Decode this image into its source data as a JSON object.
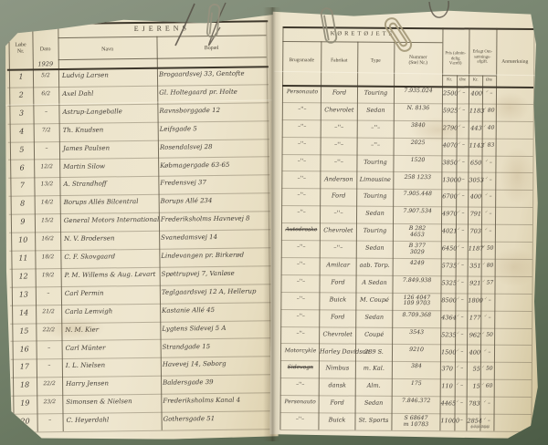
{
  "colors": {
    "background_felt": "#6e7c65",
    "paper": "#ece4cb",
    "ink": "#413c36",
    "printed": "#4d4639",
    "pencil": "#8e8674",
    "grid_line": "#4d4534"
  },
  "decorations": {
    "icons": [
      "paperclip-icon",
      "paperclip-icon",
      "paperclip-icon",
      "ink-flourish",
      "ink-flourish",
      "ink-flourish"
    ]
  },
  "left_page": {
    "title": "EJERENS",
    "columns": {
      "no": "Løbe\nNr.",
      "date": "Dato",
      "name": "Navn",
      "residence": "Bopæl"
    },
    "year": "1929",
    "rows": [
      {
        "no": "1",
        "date": "5/2",
        "name": "Ludvig Larsen",
        "residence": "Brogaardsvej 33, Gentofte"
      },
      {
        "no": "2",
        "date": "6/2",
        "name": "Axel Dahl",
        "residence": "Gl. Holtegaard pr. Holte"
      },
      {
        "no": "3",
        "date": "–",
        "name": "Astrup-Langeballe",
        "residence": "Ravnsborggade 12"
      },
      {
        "no": "4",
        "date": "7/2",
        "name": "Th. Knudsen",
        "residence": "Leifsgade 5"
      },
      {
        "no": "5",
        "date": "–",
        "name": "James Paulsen",
        "residence": "Rosendalsvej 28"
      },
      {
        "no": "6",
        "date": "12/2",
        "name": "Martin Silow",
        "residence": "Købmagergade 63-65"
      },
      {
        "no": "7",
        "date": "13/2",
        "name": "A. Strandhoff",
        "residence": "Fredensvej 37"
      },
      {
        "no": "8",
        "date": "14/2",
        "name": "Borups Allés Bilcentral",
        "residence": "Borups Allé 234"
      },
      {
        "no": "9",
        "date": "15/2",
        "name": "General Motors International",
        "residence": "Frederiksholms Havnevej 8"
      },
      {
        "no": "10",
        "date": "16/2",
        "name": "N. V. Brodersen",
        "residence": "Svanedamsvej 14"
      },
      {
        "no": "11",
        "date": "18/2",
        "name": "C. F. Skovgaard",
        "residence": "Lindevangen pr. Birkerød"
      },
      {
        "no": "12",
        "date": "19/2",
        "name": "P. M. Willems & Aug. Levart",
        "residence": "Spøttrupvej 7, Vanløse"
      },
      {
        "no": "13",
        "date": "–",
        "name": "Carl Permin",
        "residence": "Teglgaardsvej 12 A, Hellerup"
      },
      {
        "no": "14",
        "date": "21/2",
        "name": "Carla Lemvigh",
        "residence": "Kastanie Allé 45"
      },
      {
        "no": "15",
        "date": "22/2",
        "name": "N. M. Kier",
        "residence": "Lygtens Sidevej 5 A"
      },
      {
        "no": "16",
        "date": "–",
        "name": "Carl Münter",
        "residence": "Strandgade 15"
      },
      {
        "no": "17",
        "date": "–",
        "name": "I. L. Nielsen",
        "residence": "Havevej 14, Søborg"
      },
      {
        "no": "18",
        "date": "22/2",
        "name": "Harry Jensen",
        "residence": "Baldersgade 39"
      },
      {
        "no": "19",
        "date": "23/2",
        "name": "Simonsen & Nielsen",
        "residence": "Frederiksholms Kanal 4"
      },
      {
        "no": "20",
        "date": "–",
        "name": "C. Heyerdahl",
        "residence": "Gothersgade 51"
      }
    ]
  },
  "right_page": {
    "title": "KØRETØJETS",
    "columns": {
      "use": "Brugsmaade",
      "make": "Fabrikat",
      "type": "Type",
      "number": "Nummer\n(Stel Nr.)",
      "price": "Pris (almin-\ndelig\nVærdi)",
      "tax": "Erlagt Om-\nsætnings-\nafgift.",
      "remark": "Anmærkning",
      "kr": "Kr.",
      "ore": "Øre"
    },
    "tick": "✓",
    "rows": [
      {
        "use": "Personauto",
        "make": "Ford",
        "type": "Touring",
        "number": "7.935.024",
        "price_kr": "2500",
        "price_ore": "–",
        "tax_kr": "400",
        "tax_ore": "–",
        "remark": ""
      },
      {
        "use": "–''–",
        "make": "Chevrolet",
        "type": "Sedan",
        "number": "N. 8136",
        "price_kr": "5925",
        "price_ore": "–",
        "tax_kr": "1183",
        "tax_ore": "80",
        "remark": ""
      },
      {
        "use": "–''–",
        "make": "–''–",
        "type": "–''–",
        "number": "3840",
        "price_kr": "2790",
        "price_ore": "–",
        "tax_kr": "443",
        "tax_ore": "40",
        "remark": ""
      },
      {
        "use": "–''–",
        "make": "–''–",
        "type": "–''–",
        "number": "2025",
        "price_kr": "4070",
        "price_ore": "–",
        "tax_kr": "1143",
        "tax_ore": "83",
        "remark": ""
      },
      {
        "use": "–''–",
        "make": "–''–",
        "type": "Touring",
        "number": "1520",
        "price_kr": "3850",
        "price_ore": "–",
        "tax_kr": "650",
        "tax_ore": "–",
        "remark": ""
      },
      {
        "use": "–''–",
        "make": "Anderson",
        "type": "Limousine",
        "number": "258 1233",
        "price_kr": "13000",
        "price_ore": "–",
        "tax_kr": "3053",
        "tax_ore": "–",
        "remark": ""
      },
      {
        "use": "–''–",
        "make": "Ford",
        "type": "Touring",
        "number": "7.905.448",
        "price_kr": "6700",
        "price_ore": "–",
        "tax_kr": "400",
        "tax_ore": "–",
        "remark": ""
      },
      {
        "use": "–''–",
        "make": "–''–",
        "type": "Sedan",
        "number": "7.907.534",
        "price_kr": "4970",
        "price_ore": "–",
        "tax_kr": "791",
        "tax_ore": "–",
        "remark": ""
      },
      {
        "use": "Autodroske",
        "use_struck": true,
        "make": "Chevrolet",
        "type": "Touring",
        "number": "B 282\n4653",
        "price_kr": "4021",
        "price_ore": "–",
        "tax_kr": "703",
        "tax_ore": "–",
        "remark": ""
      },
      {
        "use": "–''–",
        "make": "–''–",
        "type": "Sedan",
        "number": "B 377\n3029",
        "price_kr": "6450",
        "price_ore": "–",
        "tax_kr": "1187",
        "tax_ore": "50",
        "remark": ""
      },
      {
        "use": "–''–",
        "make": "Amilcar",
        "type": "aab. Torp.",
        "number": "4249",
        "price_kr": "5735",
        "price_ore": "–",
        "tax_kr": "351",
        "tax_ore": "80",
        "remark": ""
      },
      {
        "use": "–''–",
        "make": "Ford",
        "type": "A Sedan",
        "number": "7.849.938",
        "price_kr": "5325",
        "price_ore": "–",
        "tax_kr": "921",
        "tax_ore": "57",
        "remark": ""
      },
      {
        "use": "–''–",
        "make": "Buick",
        "type": "M. Coupé",
        "number": "126 4047\n109 9703",
        "price_kr": "8500",
        "price_ore": "–",
        "tax_kr": "1800",
        "tax_ore": "–",
        "remark": ""
      },
      {
        "use": "–''–",
        "make": "Ford",
        "type": "Sedan",
        "number": "8.709.368",
        "price_kr": "4364",
        "price_ore": "–",
        "tax_kr": "177",
        "tax_ore": "–",
        "remark": ""
      },
      {
        "use": "–''–",
        "make": "Chevrolet",
        "type": "Coupé",
        "number": "3543",
        "price_kr": "5235",
        "price_ore": "–",
        "tax_kr": "962",
        "tax_ore": "50",
        "remark": ""
      },
      {
        "use": "Motorcykle",
        "make": "Harley Davidson",
        "type": "289 S.",
        "number": "9210",
        "price_kr": "1500",
        "price_ore": "–",
        "tax_kr": "400",
        "tax_ore": "–",
        "remark": ""
      },
      {
        "use": "Sidevogn",
        "use_struck": true,
        "make": "Nimbus",
        "type": "m. Kal.",
        "number": "384",
        "price_kr": "370",
        "price_ore": "–",
        "tax_kr": "55",
        "tax_ore": "50",
        "remark": ""
      },
      {
        "use": "–''–",
        "make": "dansk",
        "type": "Alm.",
        "number": "175",
        "price_kr": "110",
        "price_ore": "–",
        "tax_kr": "15",
        "tax_ore": "60",
        "remark": ""
      },
      {
        "use": "Personauto",
        "make": "Ford",
        "type": "Sedan",
        "number": "7.846.372",
        "price_kr": "4465",
        "price_ore": "–",
        "tax_kr": "783",
        "tax_ore": "–",
        "remark": ""
      },
      {
        "use": "–''–",
        "make": "Buick",
        "type": "St. Sports",
        "number": "S 68647\nm 10783",
        "price_kr": "11000",
        "price_ore": "–",
        "tax_kr": "2854",
        "tax_ore": "–",
        "remark": "",
        "note": "173 708"
      }
    ]
  }
}
